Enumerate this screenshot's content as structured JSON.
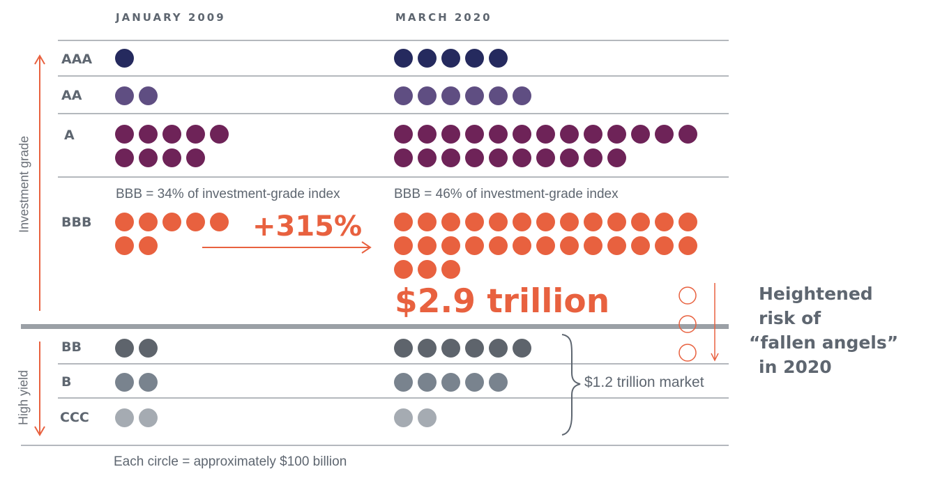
{
  "columns": [
    "JANUARY 2009",
    "MARCH 2020"
  ],
  "side_labels": {
    "investment_grade": "Investment grade",
    "high_yield": "High yield"
  },
  "notes": {
    "bbb_2009": "BBB = 34% of investment-grade index",
    "bbb_2020": "BBB = 46% of investment-grade index",
    "growth": "+315%",
    "bbb_total": "$2.9 trillion",
    "risk": [
      "Heightened",
      "risk of",
      "“fallen angels”",
      "in 2020"
    ],
    "high_yield_market": "$1.2 trillion market",
    "footnote": "Each circle = approximately $100 billion"
  },
  "chart_data": {
    "type": "pictograph",
    "unit": "Each circle = approximately $100 billion",
    "categories": [
      "AAA",
      "AA",
      "A",
      "BBB",
      "BB",
      "B",
      "CCC"
    ],
    "series": [
      {
        "name": "JANUARY 2009",
        "values": [
          1,
          2,
          9,
          7,
          2,
          2,
          2
        ]
      },
      {
        "name": "MARCH 2020",
        "values": [
          5,
          6,
          23,
          29,
          6,
          5,
          2
        ]
      }
    ],
    "fallen_angel_circles": 3,
    "colors": {
      "AAA": "#252a5e",
      "AA": "#5f4e82",
      "A": "#6e2358",
      "BBB": "#e8613f",
      "BB": "#5e646c",
      "B": "#79838e",
      "CCC": "#a5abb2",
      "accent": "#e8613f",
      "text": "#5e6670"
    }
  }
}
